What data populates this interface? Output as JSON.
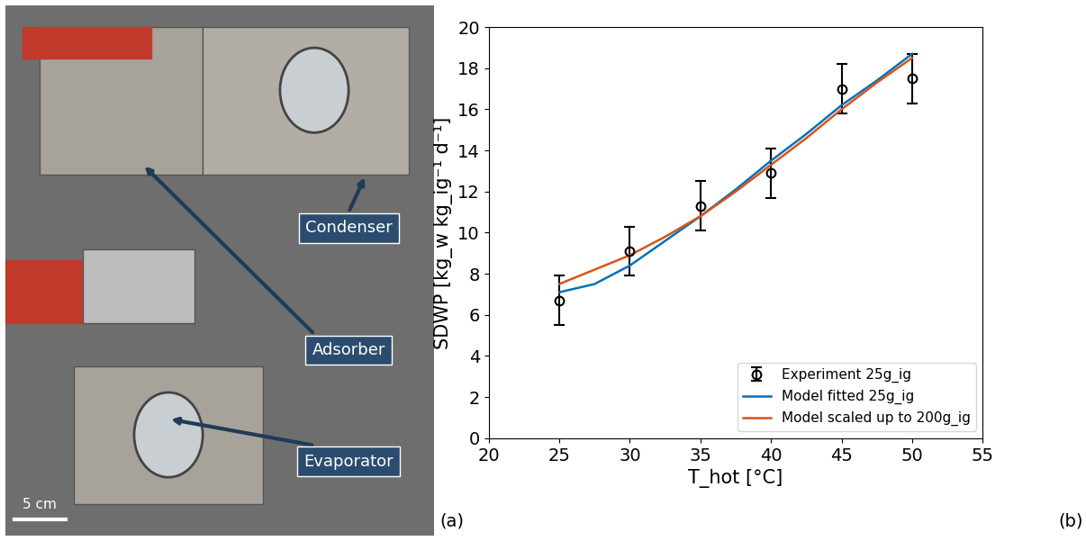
{
  "chart_data": {
    "type": "scatter",
    "x_label": "T_hot [°C]",
    "y_label": "SDWP [kg_w kg_ig⁻¹ d⁻¹]",
    "xlim": [
      20,
      55
    ],
    "xticks": [
      20,
      25,
      30,
      35,
      40,
      45,
      50,
      55
    ],
    "ylim": [
      0,
      20
    ],
    "yticks": [
      0,
      2,
      4,
      6,
      8,
      10,
      12,
      14,
      16,
      18,
      20
    ],
    "grid": false,
    "legend": "lower right",
    "series": [
      {
        "name": "Experiment 25g_ig",
        "type": "scatter",
        "color": "#000000",
        "marker": "circle",
        "x": [
          25,
          30,
          35,
          40,
          45,
          50
        ],
        "values": [
          6.7,
          9.1,
          11.3,
          12.9,
          17.0,
          17.5
        ],
        "errors": [
          1.2,
          1.2,
          1.2,
          1.2,
          1.2,
          1.2
        ]
      },
      {
        "name": "Model fitted 25g_ig",
        "type": "line",
        "color": "#0072bd",
        "line_style": "solid",
        "x": [
          25,
          27.5,
          30,
          32.5,
          35,
          37.5,
          40,
          42.5,
          45,
          47.5,
          50
        ],
        "values": [
          7.1,
          7.5,
          8.4,
          9.6,
          10.8,
          12.1,
          13.5,
          14.8,
          16.2,
          17.4,
          18.7
        ]
      },
      {
        "name": "Model scaled up to 200g_ig",
        "type": "line",
        "color": "#d95319",
        "line_style": "solid",
        "x": [
          25,
          27.5,
          30,
          32.5,
          35,
          37.5,
          40,
          42.5,
          45,
          47.5,
          50
        ],
        "values": [
          7.5,
          8.2,
          8.9,
          9.8,
          10.8,
          12.0,
          13.3,
          14.6,
          16.0,
          17.3,
          18.5
        ]
      }
    ]
  },
  "photo_panel": {
    "labels": [
      "Condenser",
      "Adsorber",
      "Evaporator"
    ],
    "scale_bar": "5 cm"
  },
  "panel_labels": [
    "(a)",
    "(b)"
  ]
}
